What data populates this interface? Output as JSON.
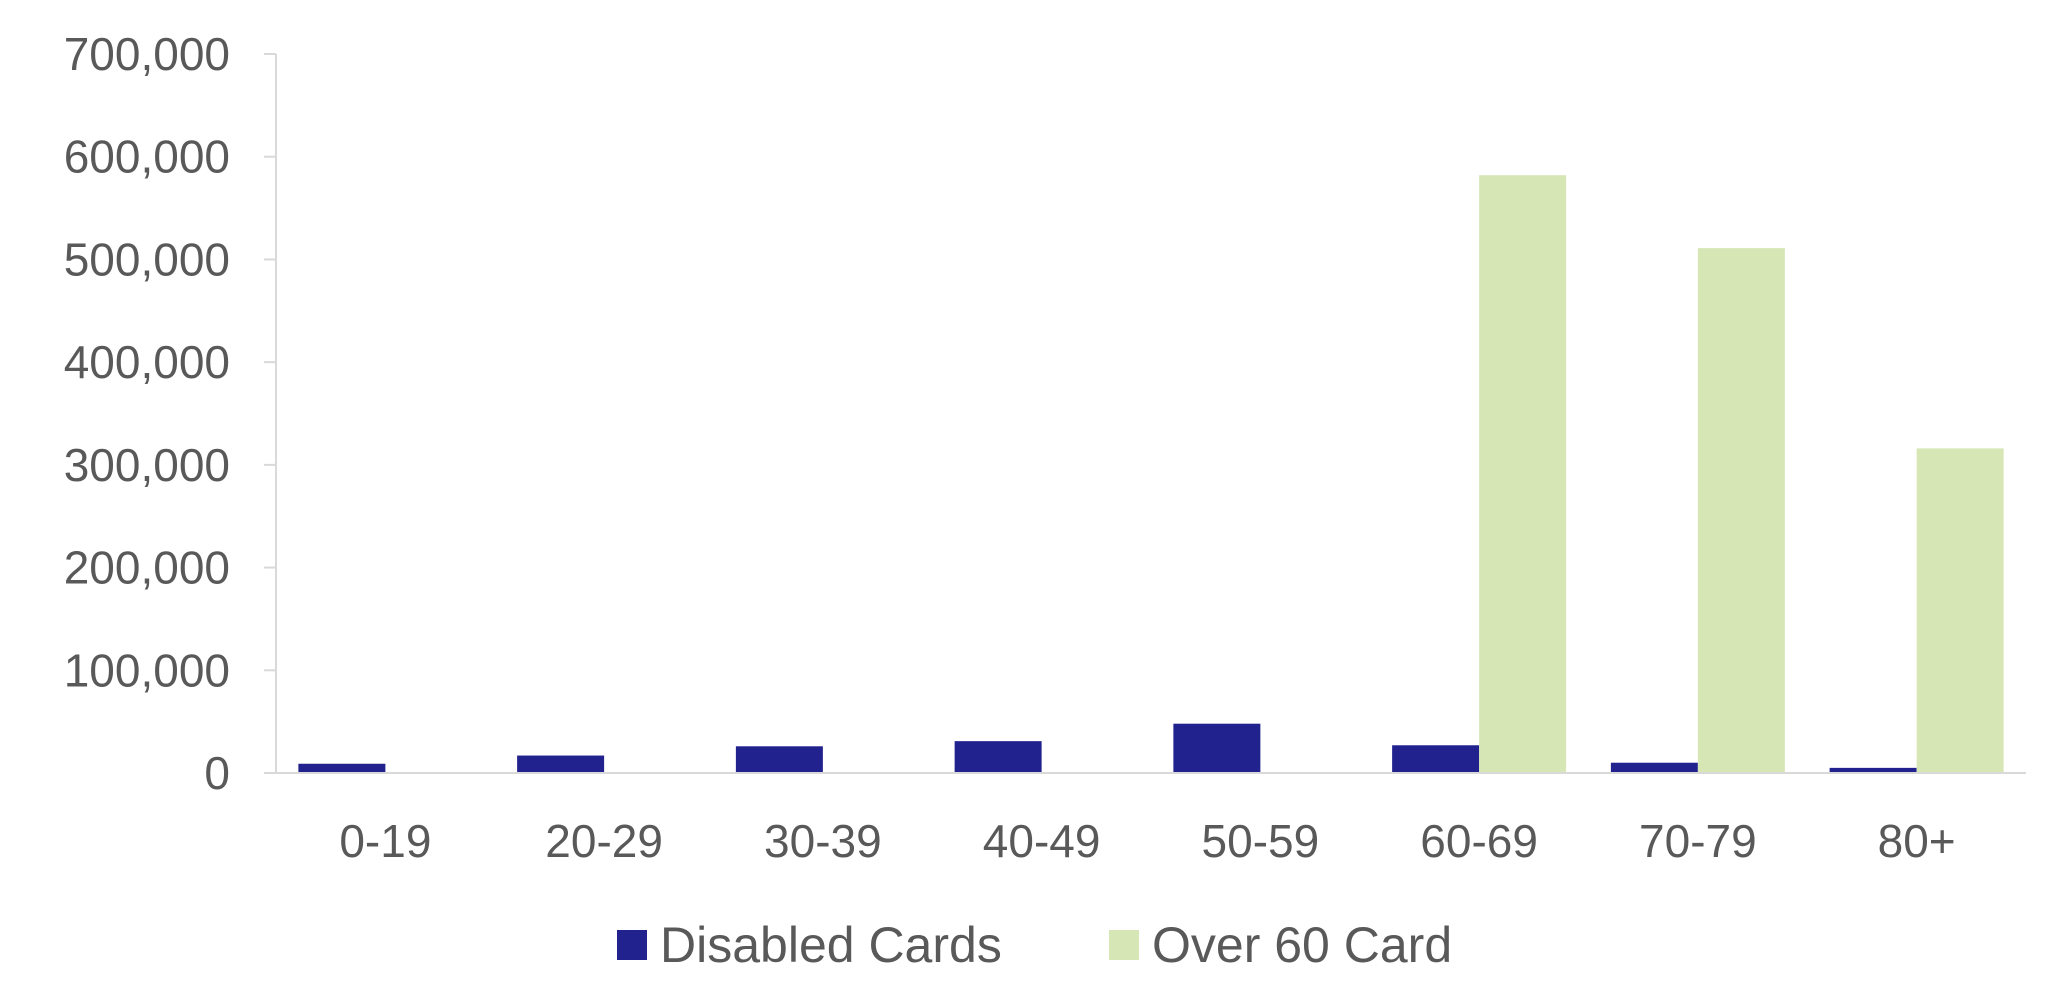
{
  "chart_data": {
    "type": "bar",
    "categories": [
      "0-19",
      "20-29",
      "30-39",
      "40-49",
      "50-59",
      "60-69",
      "70-79",
      "80+"
    ],
    "series": [
      {
        "name": "Disabled Cards",
        "color": "#22228f",
        "values": [
          9000,
          17000,
          26000,
          31000,
          48000,
          27000,
          10000,
          5000
        ]
      },
      {
        "name": "Over 60 Card",
        "color": "#d6e6b5",
        "values": [
          0,
          0,
          0,
          0,
          0,
          582000,
          511000,
          316000
        ]
      }
    ],
    "y_ticks": [
      "0",
      "100,000",
      "200,000",
      "300,000",
      "400,000",
      "500,000",
      "600,000",
      "700,000"
    ],
    "ylim": [
      0,
      700000
    ],
    "title": "",
    "xlabel": "",
    "ylabel": "",
    "grid": false,
    "legend_position": "bottom-center"
  }
}
